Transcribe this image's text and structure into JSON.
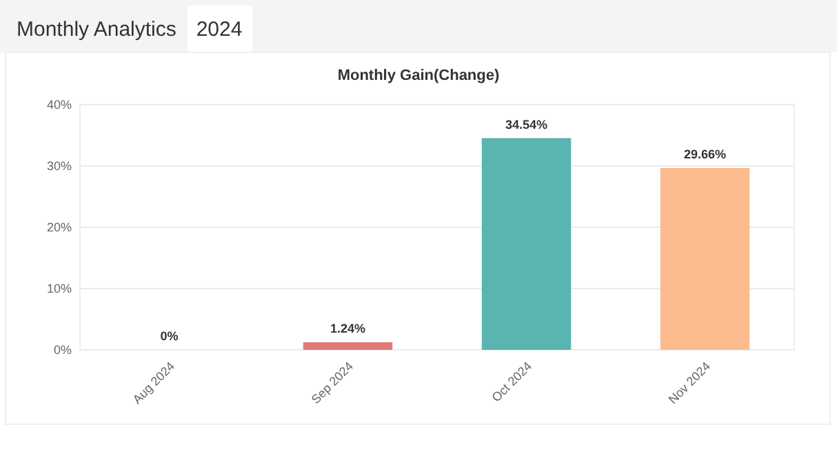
{
  "chart_data": {
    "type": "bar",
    "title": "Monthly Gain(Change)",
    "annotations": [
      "Monthly Analytics",
      "2024"
    ],
    "categories": [
      "Aug 2024",
      "Sep 2024",
      "Oct 2024",
      "Nov 2024"
    ],
    "values": [
      0,
      1.24,
      34.54,
      29.66
    ],
    "colors": [
      "#8fb8de",
      "#e07b7b",
      "#5ab4b0",
      "#fdbb8f"
    ],
    "value_labels": [
      "0%",
      "1.24%",
      "34.54%",
      "29.66%"
    ],
    "ylim": [
      0,
      40
    ],
    "yticks": [
      {
        "value": 0,
        "label": "0%"
      },
      {
        "value": 10,
        "label": "10%"
      },
      {
        "value": 20,
        "label": "20%"
      },
      {
        "value": 30,
        "label": "30%"
      },
      {
        "value": 40,
        "label": "40%"
      }
    ],
    "grid": "y"
  }
}
